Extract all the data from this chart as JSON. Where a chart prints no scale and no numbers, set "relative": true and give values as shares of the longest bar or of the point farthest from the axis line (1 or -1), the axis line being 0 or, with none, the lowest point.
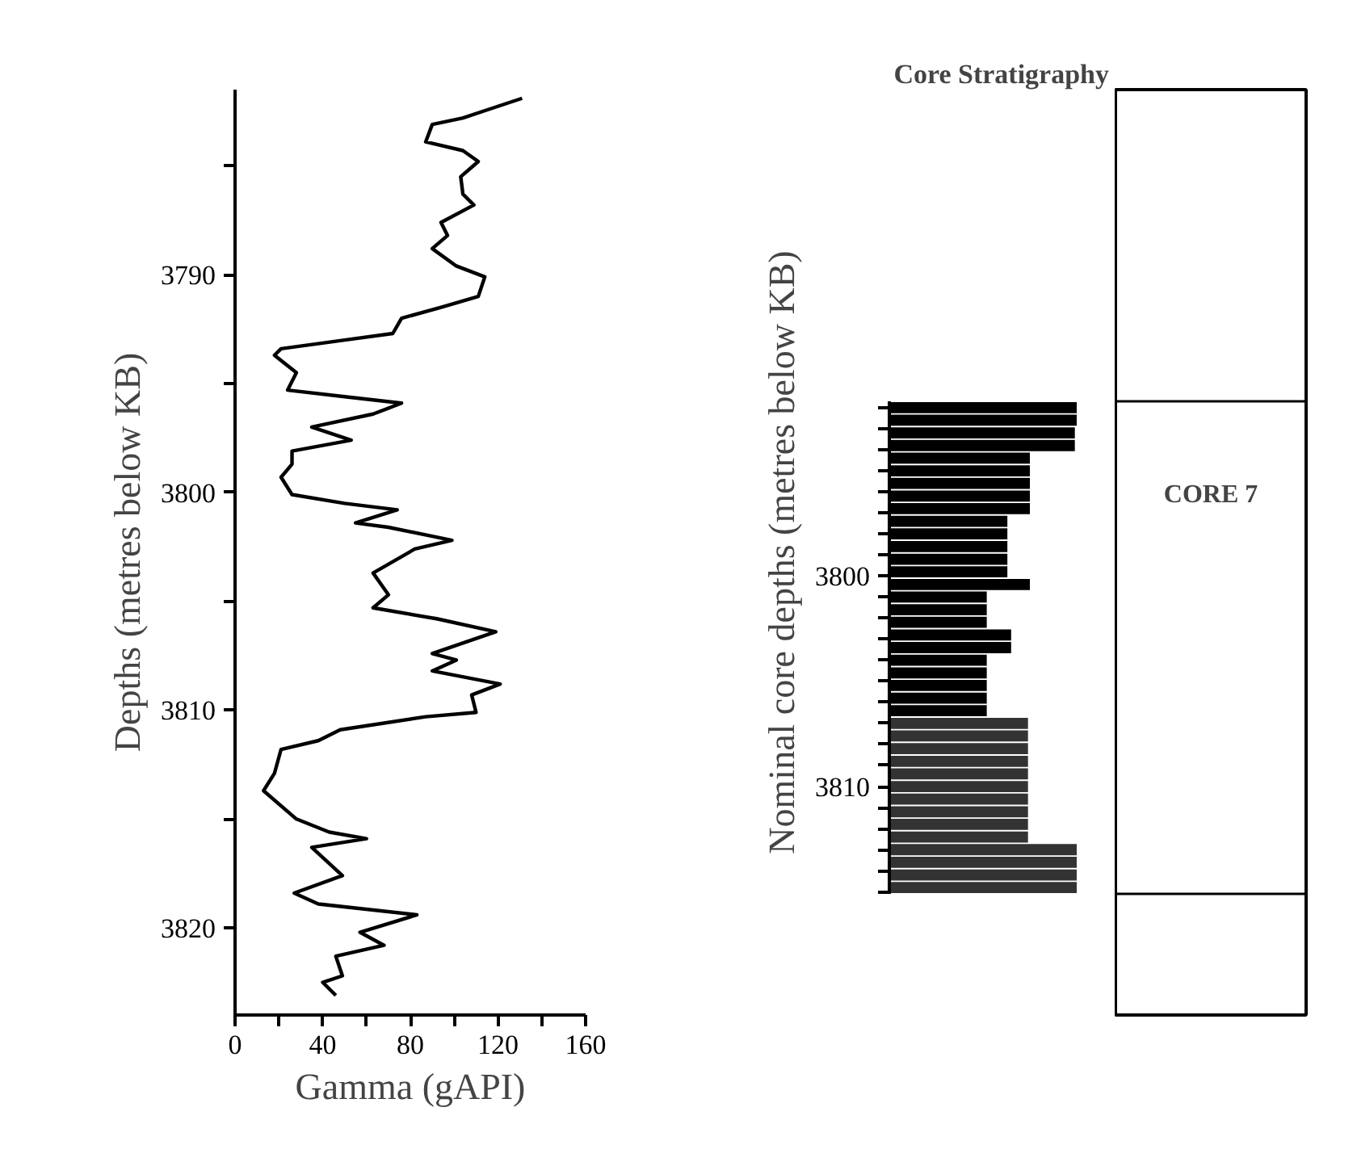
{
  "chart_data": [
    {
      "type": "line",
      "xlabel": "Gamma (gAPI)",
      "ylabel": "Depths (metres below KB)",
      "xlim": [
        0,
        160
      ],
      "ylim": [
        3824,
        3781.5
      ],
      "xticks": [
        0,
        {
          "value": 20,
          "label": null
        },
        40,
        {
          "value": 60,
          "label": null
        },
        80,
        {
          "value": 100,
          "label": null
        },
        120,
        {
          "value": 140,
          "label": null
        },
        160
      ],
      "yticks": [
        {
          "value": 3785,
          "label": null
        },
        3790,
        {
          "value": 3795,
          "label": null
        },
        3800,
        {
          "value": 3805,
          "label": null
        },
        3810,
        {
          "value": 3815,
          "label": null
        },
        3820
      ],
      "series": [
        {
          "color": "#000000",
          "x": [
            131,
            116,
            104,
            90,
            87,
            104,
            111,
            103,
            104,
            109,
            94,
            97,
            90,
            101,
            114,
            111,
            94,
            76,
            72,
            50,
            21,
            18,
            28,
            24,
            50,
            76,
            63,
            35,
            53,
            26,
            26,
            21,
            26,
            50,
            74,
            55,
            70,
            99,
            82,
            63,
            70,
            63,
            92,
            119,
            90,
            101,
            90,
            121,
            108,
            110,
            87,
            48,
            38,
            21,
            18,
            13,
            28,
            43,
            60,
            35,
            49,
            27,
            38,
            83,
            57,
            68,
            46,
            49,
            40,
            46
          ],
          "values": [
            3781.9,
            3782.4,
            3782.8,
            3783.1,
            3783.9,
            3784.3,
            3784.8,
            3785.5,
            3786.3,
            3786.8,
            3787.6,
            3788.2,
            3788.8,
            3789.6,
            3790.1,
            3791.0,
            3791.5,
            3792.0,
            3792.7,
            3793.0,
            3793.4,
            3793.7,
            3794.5,
            3795.3,
            3795.6,
            3795.9,
            3796.4,
            3797.0,
            3797.6,
            3798.1,
            3798.7,
            3799.3,
            3800.1,
            3800.5,
            3800.8,
            3801.4,
            3801.6,
            3802.2,
            3802.6,
            3803.7,
            3804.7,
            3805.3,
            3805.8,
            3806.4,
            3807.4,
            3807.7,
            3808.2,
            3808.8,
            3809.3,
            3810.1,
            3810.3,
            3810.9,
            3811.4,
            3811.8,
            3812.9,
            3813.7,
            3815.0,
            3815.6,
            3815.9,
            3816.3,
            3817.6,
            3818.4,
            3818.9,
            3819.4,
            3820.2,
            3820.8,
            3821.3,
            3822.2,
            3822.5,
            3823.1
          ]
        }
      ]
    },
    {
      "type": "bar",
      "title": "Core Stratigraphy",
      "orientation": "horizontal",
      "relative": true,
      "ylabel": "Nominal core depths (metres below KB)",
      "ylim": [
        3815.1,
        3791.7
      ],
      "tick_labels": "y",
      "yticks": [
        {
          "value": 3792,
          "label": null
        },
        {
          "value": 3793,
          "label": null
        },
        {
          "value": 3794,
          "label": null
        },
        {
          "value": 3795,
          "label": null
        },
        {
          "value": 3796,
          "label": null
        },
        {
          "value": 3797,
          "label": null
        },
        {
          "value": 3798,
          "label": null
        },
        {
          "value": 3799,
          "label": null
        },
        3800,
        {
          "value": 3801,
          "label": null
        },
        {
          "value": 3802,
          "label": null
        },
        {
          "value": 3803,
          "label": null
        },
        {
          "value": 3804,
          "label": null
        },
        {
          "value": 3805,
          "label": null
        },
        {
          "value": 3806,
          "label": null
        },
        {
          "value": 3807,
          "label": null
        },
        {
          "value": 3808,
          "label": null
        },
        {
          "value": 3809,
          "label": null
        },
        3810,
        {
          "value": 3811,
          "label": null
        },
        {
          "value": 3812,
          "label": null
        },
        {
          "value": 3813,
          "label": null
        },
        {
          "value": 3814,
          "label": null
        },
        {
          "value": 3815,
          "label": null
        }
      ],
      "x": [
        3792.0,
        3792.6,
        3793.2,
        3793.8,
        3794.4,
        3795.0,
        3795.6,
        3796.2,
        3796.8,
        3797.4,
        3798.0,
        3798.6,
        3799.2,
        3799.8,
        3800.4,
        3801.0,
        3801.6,
        3802.2,
        3802.8,
        3803.4,
        3804.0,
        3804.6,
        3805.2,
        3805.8,
        3806.4,
        3807.0,
        3807.6,
        3808.2,
        3808.8,
        3809.4,
        3810.0,
        3810.6,
        3811.2,
        3811.8,
        3812.4,
        3813.0,
        3813.6,
        3814.2,
        3814.8
      ],
      "values": [
        1.0,
        1.0,
        0.99,
        0.99,
        0.75,
        0.75,
        0.75,
        0.75,
        0.75,
        0.63,
        0.63,
        0.63,
        0.63,
        0.63,
        0.75,
        0.52,
        0.52,
        0.52,
        0.65,
        0.65,
        0.52,
        0.52,
        0.52,
        0.52,
        0.52,
        0.74,
        0.74,
        0.74,
        0.74,
        0.74,
        0.74,
        0.74,
        0.74,
        0.74,
        0.74,
        1.0,
        1.0,
        1.0,
        1.0
      ],
      "colors": [
        "#000000",
        "#000000",
        "#000000",
        "#000000",
        "#000000",
        "#000000",
        "#000000",
        "#000000",
        "#000000",
        "#000000",
        "#000000",
        "#000000",
        "#000000",
        "#000000",
        "#000000",
        "#000000",
        "#000000",
        "#000000",
        "#000000",
        "#000000",
        "#000000",
        "#000000",
        "#000000",
        "#000000",
        "#000000",
        "#333333",
        "#333333",
        "#333333",
        "#333333",
        "#333333",
        "#333333",
        "#333333",
        "#333333",
        "#333333",
        "#333333",
        "#333333",
        "#333333",
        "#333333",
        "#333333"
      ]
    },
    {
      "type": "other",
      "annotations": [
        "CORE 7"
      ]
    }
  ]
}
